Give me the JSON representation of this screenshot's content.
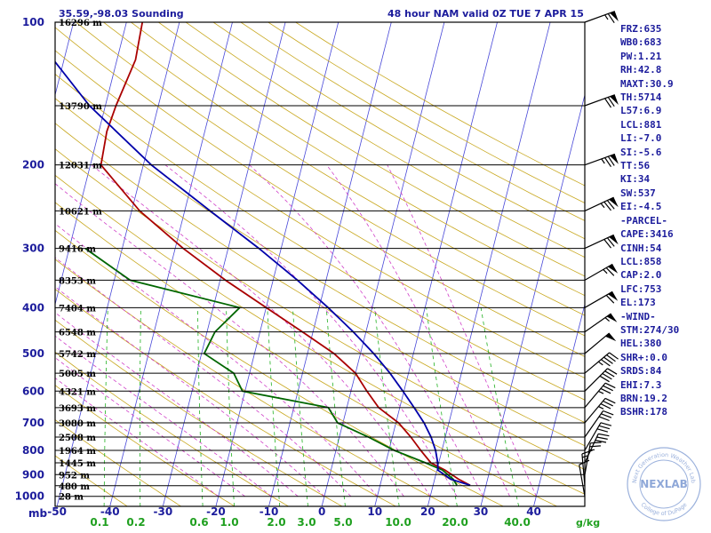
{
  "header": {
    "left": "35.59,-98.03 Sounding",
    "right": "48 hour NAM valid 0Z TUE  7 APR 15"
  },
  "indices": [
    "FRZ:635",
    "WB0:683",
    "PW:1.21",
    "RH:42.8",
    "MAXT:30.9",
    "TH:5714",
    "L57:6.9",
    "LCL:881",
    "LI:-7.0",
    "SI:-5.6",
    "TT:56",
    "KI:34",
    "SW:537",
    "EI:-4.5",
    "-PARCEL-",
    "CAPE:3416",
    "CINH:54",
    "LCL:858",
    "CAP:2.0",
    "LFC:753",
    "EL:173",
    "-WIND-",
    "STM:274/30",
    "HEL:380",
    "SHR+:0.0",
    "SRDS:84",
    "EHI:7.3",
    "BRN:19.2",
    "BSHR:178"
  ],
  "logo": {
    "text": "NEXLAB",
    "ring_top": "Next Generation Weather Lab",
    "ring_bottom": "College of DuPage"
  },
  "chart_data": {
    "type": "skew-t",
    "pressure_axis_label": "mb",
    "pressure_ticks": [
      100,
      200,
      300,
      400,
      500,
      600,
      700,
      800,
      900,
      1000
    ],
    "temperature_ticks": [
      -50,
      -40,
      -30,
      -20,
      -10,
      0,
      10,
      20,
      30,
      40
    ],
    "temperature_range": [
      -50,
      50
    ],
    "pressure_range": [
      100,
      1050
    ],
    "mixing_ratio_unit": "g/kg",
    "mixing_ratio_labels": [
      {
        "label": "0.1",
        "w": 0.1
      },
      {
        "label": "0.2",
        "w": 0.2
      },
      {
        "label": "0.6",
        "w": 0.6
      },
      {
        "label": "1.0",
        "w": 1.0
      },
      {
        "label": "2.0",
        "w": 2.0
      },
      {
        "label": "3.0",
        "w": 3.0
      },
      {
        "label": "5.0",
        "w": 5.0
      },
      {
        "label": "10.0",
        "w": 10.0
      },
      {
        "label": "20.0",
        "w": 20.0
      },
      {
        "label": "40.0",
        "w": 40.0
      }
    ],
    "height_levels": [
      {
        "p": 100,
        "label": "16296 m"
      },
      {
        "p": 150,
        "label": "13790 m"
      },
      {
        "p": 200,
        "label": "12031 m"
      },
      {
        "p": 250,
        "label": "10621 m"
      },
      {
        "p": 300,
        "label": "9416 m"
      },
      {
        "p": 350,
        "label": "8353 m"
      },
      {
        "p": 400,
        "label": "7404 m"
      },
      {
        "p": 450,
        "label": "6548 m"
      },
      {
        "p": 500,
        "label": "5742 m"
      },
      {
        "p": 550,
        "label": "5005 m"
      },
      {
        "p": 600,
        "label": "4321 m"
      },
      {
        "p": 650,
        "label": "3693 m"
      },
      {
        "p": 700,
        "label": "3080 m"
      },
      {
        "p": 750,
        "label": "2508 m"
      },
      {
        "p": 800,
        "label": "1964 m"
      },
      {
        "p": 850,
        "label": "1445 m"
      },
      {
        "p": 900,
        "label": "952 m"
      },
      {
        "p": 950,
        "label": "480 m"
      },
      {
        "p": 1000,
        "label": "28 m"
      }
    ],
    "series": [
      {
        "name": "Temperature",
        "color": "#aa0000",
        "points": [
          [
            948,
            27.0
          ],
          [
            920,
            24.5
          ],
          [
            880,
            21.5
          ],
          [
            850,
            18.5
          ],
          [
            800,
            16.0
          ],
          [
            750,
            13.5
          ],
          [
            700,
            10.5
          ],
          [
            650,
            6.0
          ],
          [
            600,
            3.0
          ],
          [
            550,
            0.0
          ],
          [
            500,
            -5.0
          ],
          [
            450,
            -12.0
          ],
          [
            400,
            -20.0
          ],
          [
            350,
            -29.0
          ],
          [
            300,
            -38.5
          ],
          [
            250,
            -48.5
          ],
          [
            200,
            -58.0
          ],
          [
            170,
            -58.5
          ],
          [
            150,
            -58.0
          ],
          [
            120,
            -56.5
          ],
          [
            100,
            -57.0
          ]
        ]
      },
      {
        "name": "Dewpoint",
        "color": "#006600",
        "points": [
          [
            948,
            24.5
          ],
          [
            920,
            23.5
          ],
          [
            880,
            21.0
          ],
          [
            850,
            17.5
          ],
          [
            800,
            11.0
          ],
          [
            750,
            5.5
          ],
          [
            700,
            -1.0
          ],
          [
            650,
            -3.5
          ],
          [
            600,
            -20.5
          ],
          [
            550,
            -23.0
          ],
          [
            500,
            -29.5
          ],
          [
            450,
            -28.5
          ],
          [
            400,
            -25.0
          ],
          [
            350,
            -47.0
          ],
          [
            300,
            -57.0
          ]
        ]
      },
      {
        "name": "Parcel",
        "color": "#0000aa",
        "points": [
          [
            948,
            27.0
          ],
          [
            920,
            23.0
          ],
          [
            881,
            20.2
          ],
          [
            850,
            19.8
          ],
          [
            800,
            18.8
          ],
          [
            750,
            17.3
          ],
          [
            700,
            15.3
          ],
          [
            650,
            12.7
          ],
          [
            600,
            9.8
          ],
          [
            550,
            6.5
          ],
          [
            500,
            2.5
          ],
          [
            450,
            -2.4
          ],
          [
            400,
            -8.3
          ],
          [
            350,
            -15.4
          ],
          [
            300,
            -24.2
          ],
          [
            250,
            -35.2
          ],
          [
            200,
            -48.5
          ],
          [
            150,
            -63.0
          ],
          [
            120,
            -72.0
          ]
        ]
      }
    ],
    "wind_barbs": [
      {
        "p": 100,
        "dir": 250,
        "kt": 65
      },
      {
        "p": 150,
        "dir": 250,
        "kt": 70
      },
      {
        "p": 200,
        "dir": 250,
        "kt": 75
      },
      {
        "p": 250,
        "dir": 245,
        "kt": 75
      },
      {
        "p": 300,
        "dir": 245,
        "kt": 70
      },
      {
        "p": 350,
        "dir": 240,
        "kt": 65
      },
      {
        "p": 400,
        "dir": 240,
        "kt": 60
      },
      {
        "p": 450,
        "dir": 235,
        "kt": 55
      },
      {
        "p": 500,
        "dir": 230,
        "kt": 50
      },
      {
        "p": 550,
        "dir": 230,
        "kt": 45
      },
      {
        "p": 600,
        "dir": 225,
        "kt": 40
      },
      {
        "p": 650,
        "dir": 220,
        "kt": 35
      },
      {
        "p": 700,
        "dir": 220,
        "kt": 35
      },
      {
        "p": 750,
        "dir": 215,
        "kt": 30
      },
      {
        "p": 800,
        "dir": 210,
        "kt": 30
      },
      {
        "p": 850,
        "dir": 205,
        "kt": 30
      },
      {
        "p": 900,
        "dir": 190,
        "kt": 25
      },
      {
        "p": 950,
        "dir": 175,
        "kt": 15
      },
      {
        "p": 1000,
        "dir": 170,
        "kt": 10
      }
    ]
  }
}
